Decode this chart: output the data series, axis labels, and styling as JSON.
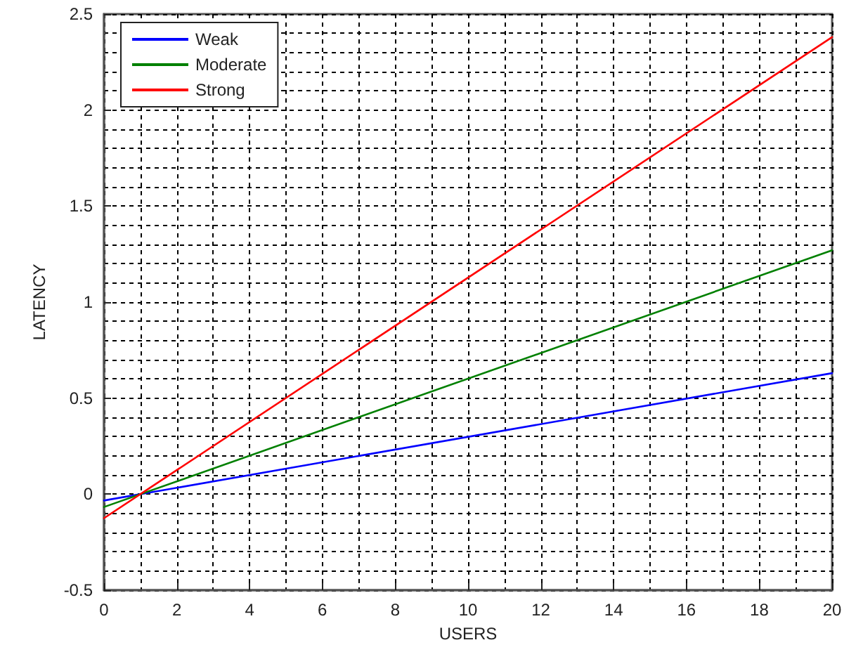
{
  "chart_data": {
    "type": "line",
    "xlabel": "USERS",
    "ylabel": "LATENCY",
    "xlim": [
      0,
      20
    ],
    "xticks": [
      0,
      2,
      4,
      6,
      8,
      10,
      12,
      14,
      16,
      18,
      20
    ],
    "ylim": [
      -0.5,
      2.5
    ],
    "yticks": [
      -0.5,
      0,
      0.5,
      1,
      1.5,
      2,
      2.5
    ],
    "x": [
      0,
      20
    ],
    "series": [
      {
        "name": "Weak",
        "color": "#0000ff",
        "values": [
          -0.033,
          0.63
        ]
      },
      {
        "name": "Moderate",
        "color": "#008000",
        "values": [
          -0.067,
          1.27
        ]
      },
      {
        "name": "Strong",
        "color": "#ff0000",
        "values": [
          -0.125,
          2.38
        ]
      }
    ],
    "grid": true,
    "legend": "top left",
    "marker": "none",
    "line_style": "solid"
  }
}
